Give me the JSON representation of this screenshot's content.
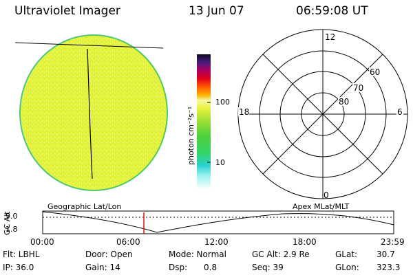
{
  "header": {
    "instrument": "Ultraviolet Imager",
    "date": "13 Jun 07",
    "time": "06:59:08 UT"
  },
  "colorbar": {
    "label": "photon cm⁻²s⁻¹",
    "ticks": [
      "100",
      "10"
    ]
  },
  "polar_plot": {
    "mlt_labels": {
      "top": "12",
      "left": "18",
      "right": "6",
      "bottom": "0"
    },
    "lat_labels": [
      "60",
      "70",
      "80"
    ]
  },
  "timeline": {
    "left_title": "Geographic Lat/Lon",
    "right_title": "Apex MLat/MLT",
    "ylabel": "GC Alt",
    "ymax": "9.0",
    "ymin": "1.8",
    "ticks": [
      "00:00",
      "06:00",
      "12:00",
      "18:00",
      "23:59"
    ]
  },
  "footer": {
    "col1": [
      "Flt: LBHL",
      "IP: 36.0"
    ],
    "col2": [
      "Door: Open",
      "Gain: 14"
    ],
    "col3a": [
      "Mode: Normal",
      "Dsp:"
    ],
    "col3b": [
      "",
      "0.8"
    ],
    "col4": [
      "GC Alt: 2.9 Re",
      "Seq: 39"
    ],
    "col5": [
      "GLat:",
      "GLon:"
    ],
    "col6": [
      "30.7",
      "323.3"
    ]
  },
  "colors": {
    "disk": "#e2f23c",
    "disk_edge": "#4fc874",
    "marker": "#e00000"
  }
}
